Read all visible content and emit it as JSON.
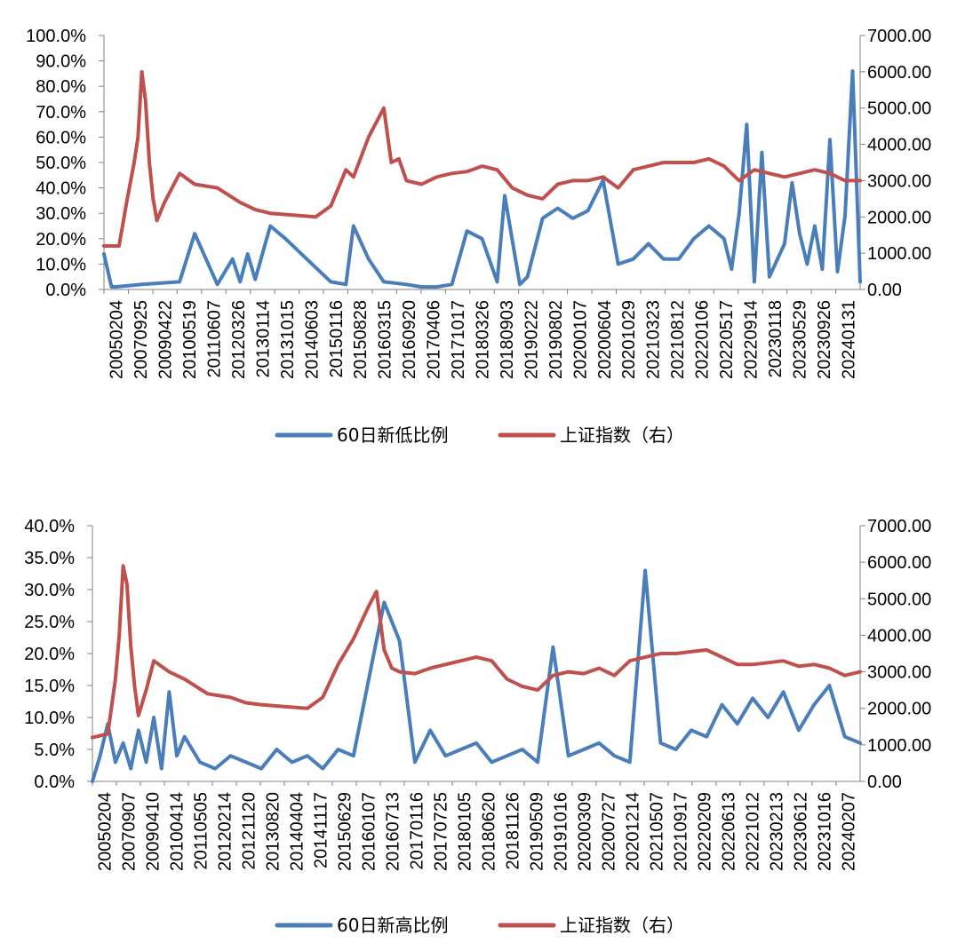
{
  "chart_data": [
    {
      "type": "line",
      "title": "",
      "y_left_ticks": [
        "0.0%",
        "10.0%",
        "20.0%",
        "30.0%",
        "40.0%",
        "50.0%",
        "60.0%",
        "70.0%",
        "80.0%",
        "90.0%",
        "100.0%"
      ],
      "y_left_range": [
        0,
        100
      ],
      "y_right_ticks": [
        "0.00",
        "1000.00",
        "2000.00",
        "3000.00",
        "4000.00",
        "5000.00",
        "6000.00",
        "7000.00"
      ],
      "y_right_range": [
        0,
        7000
      ],
      "x_ticks": [
        "20050204",
        "20070925",
        "20090422",
        "20100519",
        "20110607",
        "20120326",
        "20130114",
        "20131015",
        "20140603",
        "20150116",
        "20150828",
        "20160315",
        "20160920",
        "20170406",
        "20171017",
        "20180326",
        "20180903",
        "20190222",
        "20190802",
        "20200107",
        "20200604",
        "20201029",
        "20210323",
        "20210812",
        "20220106",
        "20220517",
        "20220914",
        "20230118",
        "20230529",
        "20230926",
        "20240131"
      ],
      "legend": [
        "60日新低比例",
        "上证指数（右）"
      ],
      "legend_position": "bottom",
      "grid": false,
      "series": [
        {
          "name": "60日新低比例",
          "axis": "left",
          "color": "#4a7ebb",
          "x": [
            0,
            0.01,
            0.015,
            0.05,
            0.1,
            0.12,
            0.15,
            0.17,
            0.18,
            0.19,
            0.2,
            0.22,
            0.24,
            0.3,
            0.32,
            0.33,
            0.35,
            0.37,
            0.4,
            0.42,
            0.43,
            0.44,
            0.46,
            0.48,
            0.5,
            0.52,
            0.53,
            0.55,
            0.56,
            0.58,
            0.6,
            0.62,
            0.64,
            0.66,
            0.68,
            0.7,
            0.72,
            0.74,
            0.76,
            0.78,
            0.8,
            0.82,
            0.83,
            0.84,
            0.85,
            0.86,
            0.87,
            0.88,
            0.9,
            0.91,
            0.92,
            0.93,
            0.94,
            0.95,
            0.96,
            0.97,
            0.98,
            0.99,
            1.0
          ],
          "values": [
            14,
            1,
            1,
            2,
            3,
            22,
            2,
            12,
            3,
            14,
            4,
            25,
            20,
            3,
            2,
            25,
            12,
            3,
            2,
            1,
            1,
            1,
            2,
            23,
            20,
            3,
            37,
            2,
            5,
            28,
            32,
            28,
            31,
            43,
            10,
            12,
            18,
            12,
            12,
            20,
            25,
            20,
            8,
            30,
            65,
            3,
            54,
            5,
            18,
            42,
            22,
            10,
            25,
            8,
            59,
            7,
            29,
            86,
            3
          ]
        },
        {
          "name": "上证指数（右）",
          "axis": "right",
          "color": "#c0504d",
          "x": [
            0,
            0.02,
            0.03,
            0.04,
            0.045,
            0.05,
            0.055,
            0.06,
            0.065,
            0.07,
            0.08,
            0.1,
            0.12,
            0.15,
            0.18,
            0.2,
            0.22,
            0.25,
            0.28,
            0.3,
            0.32,
            0.33,
            0.35,
            0.37,
            0.38,
            0.39,
            0.4,
            0.42,
            0.44,
            0.46,
            0.48,
            0.5,
            0.52,
            0.54,
            0.56,
            0.58,
            0.6,
            0.62,
            0.64,
            0.66,
            0.68,
            0.7,
            0.72,
            0.74,
            0.76,
            0.78,
            0.8,
            0.82,
            0.84,
            0.86,
            0.88,
            0.9,
            0.92,
            0.94,
            0.96,
            0.98,
            1.0
          ],
          "values": [
            1200,
            1200,
            2400,
            3500,
            4200,
            6000,
            5200,
            3500,
            2500,
            1900,
            2400,
            3200,
            2900,
            2800,
            2400,
            2200,
            2100,
            2050,
            2000,
            2300,
            3300,
            3100,
            4200,
            5000,
            3500,
            3600,
            3000,
            2900,
            3100,
            3200,
            3250,
            3400,
            3300,
            2800,
            2600,
            2500,
            2900,
            3000,
            3000,
            3100,
            2800,
            3300,
            3400,
            3500,
            3500,
            3500,
            3600,
            3400,
            3000,
            3300,
            3200,
            3100,
            3200,
            3300,
            3200,
            3000,
            3000
          ]
        }
      ]
    },
    {
      "type": "line",
      "title": "",
      "y_left_ticks": [
        "0.0%",
        "5.0%",
        "10.0%",
        "15.0%",
        "20.0%",
        "25.0%",
        "30.0%",
        "35.0%",
        "40.0%"
      ],
      "y_left_range": [
        0,
        40
      ],
      "y_right_ticks": [
        "0.00",
        "1000.00",
        "2000.00",
        "3000.00",
        "4000.00",
        "5000.00",
        "6000.00",
        "7000.00"
      ],
      "y_right_range": [
        0,
        7000
      ],
      "x_ticks": [
        "20050204",
        "20070907",
        "20090410",
        "20100414",
        "20110505",
        "20120214",
        "20121120",
        "20130820",
        "20140404",
        "20141117",
        "20150629",
        "20160107",
        "20160713",
        "20170116",
        "20170725",
        "20180105",
        "20180620",
        "20181126",
        "20190509",
        "20191016",
        "20200309",
        "20200727",
        "20201214",
        "20210507",
        "20210917",
        "20220209",
        "20220613",
        "20221012",
        "20230213",
        "20230612",
        "20231016",
        "20240207"
      ],
      "legend": [
        "60日新高比例",
        "上证指数（右）"
      ],
      "legend_position": "bottom",
      "grid": false,
      "series": [
        {
          "name": "60日新高比例",
          "axis": "left",
          "color": "#4a7ebb",
          "x": [
            0,
            0.01,
            0.02,
            0.03,
            0.04,
            0.05,
            0.06,
            0.07,
            0.08,
            0.09,
            0.1,
            0.11,
            0.12,
            0.14,
            0.16,
            0.18,
            0.2,
            0.22,
            0.24,
            0.26,
            0.28,
            0.3,
            0.32,
            0.34,
            0.36,
            0.38,
            0.4,
            0.42,
            0.44,
            0.46,
            0.48,
            0.5,
            0.52,
            0.54,
            0.56,
            0.58,
            0.6,
            0.62,
            0.64,
            0.66,
            0.68,
            0.7,
            0.72,
            0.74,
            0.76,
            0.78,
            0.8,
            0.82,
            0.84,
            0.86,
            0.88,
            0.9,
            0.92,
            0.94,
            0.96,
            0.98,
            1.0
          ],
          "values": [
            0,
            4,
            9,
            3,
            6,
            2,
            8,
            3,
            10,
            2,
            14,
            4,
            7,
            3,
            2,
            4,
            3,
            2,
            5,
            3,
            4,
            2,
            5,
            4,
            16,
            28,
            22,
            3,
            8,
            4,
            5,
            6,
            3,
            4,
            5,
            3,
            21,
            4,
            5,
            6,
            4,
            3,
            33,
            6,
            5,
            8,
            7,
            12,
            9,
            13,
            10,
            14,
            8,
            12,
            15,
            7,
            6
          ]
        },
        {
          "name": "上证指数（右）",
          "axis": "right",
          "color": "#c0504d",
          "x": [
            0,
            0.02,
            0.03,
            0.035,
            0.04,
            0.045,
            0.05,
            0.055,
            0.06,
            0.07,
            0.08,
            0.1,
            0.12,
            0.15,
            0.18,
            0.2,
            0.22,
            0.25,
            0.28,
            0.3,
            0.32,
            0.34,
            0.36,
            0.37,
            0.38,
            0.39,
            0.4,
            0.42,
            0.44,
            0.46,
            0.48,
            0.5,
            0.52,
            0.54,
            0.56,
            0.58,
            0.6,
            0.62,
            0.64,
            0.66,
            0.68,
            0.7,
            0.72,
            0.74,
            0.76,
            0.78,
            0.8,
            0.82,
            0.84,
            0.86,
            0.88,
            0.9,
            0.92,
            0.94,
            0.96,
            0.98,
            1.0
          ],
          "values": [
            1200,
            1300,
            2800,
            4000,
            5900,
            5400,
            3700,
            2600,
            1800,
            2500,
            3300,
            3000,
            2800,
            2400,
            2300,
            2150,
            2100,
            2050,
            2000,
            2300,
            3200,
            3900,
            4800,
            5200,
            3600,
            3100,
            3000,
            2950,
            3100,
            3200,
            3300,
            3400,
            3300,
            2800,
            2600,
            2500,
            2900,
            3000,
            2950,
            3100,
            2900,
            3300,
            3400,
            3500,
            3500,
            3550,
            3600,
            3400,
            3200,
            3200,
            3250,
            3300,
            3150,
            3200,
            3100,
            2900,
            3000
          ]
        }
      ]
    }
  ]
}
